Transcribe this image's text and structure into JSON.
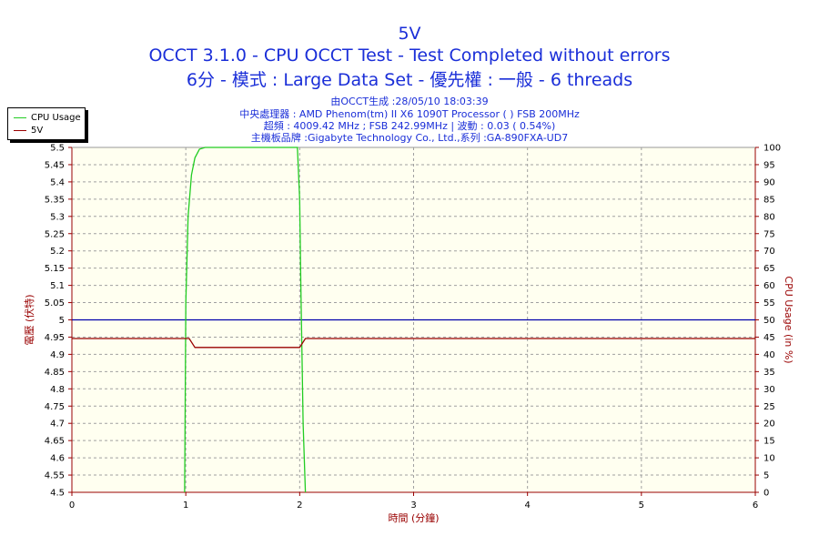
{
  "titles": {
    "line1": "5V",
    "line2": "OCCT 3.1.0 - CPU OCCT Test - Test Completed without errors",
    "line3": "6分 - 模式 : Large Data Set - 優先權 : 一般 - 6 threads"
  },
  "info": {
    "generated": "由OCCT生成 :28/05/10 18:03:39",
    "processor": "中央處理器 : AMD Phenom(tm) II X6 1090T Processor (    ) FSB 200MHz",
    "clock": "超頻 : 4009.42 MHz ; FSB 242.99MHz | 波動 : 0.03 ( 0.54%)",
    "motherboard": "主機板品牌 :Gigabyte Technology Co., Ltd.,系列 :GA-890FXA-UD7"
  },
  "legend": {
    "items": [
      {
        "label": "CPU Usage",
        "color": "#22cc22"
      },
      {
        "label": "5V",
        "color": "#990000"
      }
    ]
  },
  "colors": {
    "plot_background": "#fffff0",
    "grid": "#a0a0a0",
    "left_axis": "#990000",
    "right_axis": "#990000",
    "x_axis": "#990000",
    "reference_line": "#0000aa",
    "cpu_line": "#22cc22",
    "voltage_line": "#990000"
  },
  "chart_data": {
    "type": "line",
    "title": "5V",
    "xlabel": "時間 (分鐘)",
    "ylabel_left": "電壓 (伏特)",
    "ylabel_right": "CPU Usage (in %)",
    "xlim": [
      0,
      6
    ],
    "ylim_left": [
      4.5,
      5.5
    ],
    "ylim_right": [
      0,
      100
    ],
    "x_ticks": [
      "0",
      "1",
      "2",
      "3",
      "4",
      "5",
      "6"
    ],
    "y_left_ticks": [
      "4.5",
      "4.55",
      "4.6",
      "4.65",
      "4.7",
      "4.75",
      "4.8",
      "4.85",
      "4.9",
      "4.95",
      "5",
      "5.05",
      "5.1",
      "5.15",
      "5.2",
      "5.25",
      "5.3",
      "5.35",
      "5.4",
      "5.45",
      "5.5"
    ],
    "y_right_ticks": [
      "0",
      "5",
      "10",
      "15",
      "20",
      "25",
      "30",
      "35",
      "40",
      "45",
      "50",
      "55",
      "60",
      "65",
      "70",
      "75",
      "80",
      "85",
      "90",
      "95",
      "100"
    ],
    "grid": true,
    "legend_position": "top-left",
    "reference_line": {
      "axis": "left",
      "value": 5.0
    },
    "series": [
      {
        "name": "CPU Usage",
        "axis": "right",
        "x": [
          0.99,
          1.0,
          1.02,
          1.05,
          1.08,
          1.12,
          1.17,
          1.25,
          1.5,
          1.8,
          1.98,
          2.0,
          2.01,
          2.03,
          2.05
        ],
        "y": [
          0,
          55,
          80,
          92,
          97,
          99.5,
          100,
          100,
          100,
          100,
          100,
          85,
          60,
          20,
          0
        ]
      },
      {
        "name": "5V",
        "axis": "left",
        "x": [
          0,
          1.03,
          1.08,
          2.0,
          2.05,
          6.0
        ],
        "y": [
          4.946,
          4.946,
          4.92,
          4.92,
          4.946,
          4.946
        ]
      }
    ]
  }
}
